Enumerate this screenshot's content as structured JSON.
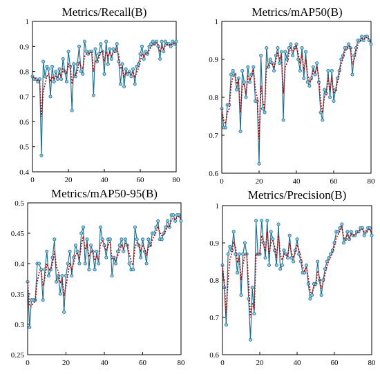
{
  "colors": {
    "line": "#1f6e8c",
    "marker_fill": "#8ecae6",
    "smooth": "#c00000",
    "axis": "#000000"
  },
  "chart_data": [
    {
      "type": "line",
      "title": "Metrics/Recall(B)",
      "xlabel": "",
      "ylabel": "",
      "xlim": [
        0,
        80
      ],
      "ylim": [
        0.4,
        1.0
      ],
      "xticks": [
        "0",
        "20",
        "40",
        "60",
        "80"
      ],
      "yticks": [
        "0.4",
        "0.5",
        "0.6",
        "0.7",
        "0.8",
        "0.9",
        "1"
      ],
      "grid": false,
      "series": [
        {
          "style": "line-markers",
          "values": [
            0.78,
            0.77,
            0.77,
            0.76,
            0.77,
            0.465,
            0.84,
            0.78,
            0.82,
            0.81,
            0.7,
            0.82,
            0.76,
            0.8,
            0.77,
            0.81,
            0.77,
            0.85,
            0.8,
            0.76,
            0.88,
            0.82,
            0.645,
            0.83,
            0.78,
            0.83,
            0.9,
            0.8,
            0.79,
            0.92,
            0.88,
            0.87,
            0.88,
            0.88,
            0.705,
            0.89,
            0.84,
            0.87,
            0.91,
            0.88,
            0.79,
            0.92,
            0.83,
            0.89,
            0.85,
            0.89,
            0.88,
            0.91,
            0.84,
            0.75,
            0.83,
            0.74,
            0.81,
            0.79,
            0.8,
            0.78,
            0.81,
            0.75,
            0.82,
            0.83,
            0.87,
            0.9,
            0.85,
            0.88,
            0.87,
            0.9,
            0.91,
            0.92,
            0.91,
            0.92,
            0.9,
            0.85,
            0.92,
            0.88,
            0.92,
            0.91,
            0.91,
            0.9,
            0.92,
            0.91,
            0.92
          ]
        },
        {
          "style": "dotted-smooth",
          "values": [
            0.78,
            0.775,
            0.77,
            0.765,
            0.765,
            0.62,
            0.72,
            0.75,
            0.78,
            0.79,
            0.76,
            0.78,
            0.77,
            0.78,
            0.775,
            0.79,
            0.78,
            0.81,
            0.8,
            0.79,
            0.83,
            0.825,
            0.75,
            0.79,
            0.785,
            0.8,
            0.84,
            0.82,
            0.81,
            0.86,
            0.87,
            0.87,
            0.875,
            0.877,
            0.8,
            0.84,
            0.84,
            0.855,
            0.88,
            0.88,
            0.84,
            0.88,
            0.86,
            0.875,
            0.862,
            0.875,
            0.878,
            0.893,
            0.868,
            0.81,
            0.82,
            0.78,
            0.795,
            0.793,
            0.796,
            0.788,
            0.8,
            0.775,
            0.797,
            0.813,
            0.84,
            0.87,
            0.86,
            0.87,
            0.87,
            0.885,
            0.897,
            0.908,
            0.909,
            0.914,
            0.907,
            0.878,
            0.899,
            0.889,
            0.905,
            0.907,
            0.908,
            0.904,
            0.912,
            0.911,
            0.915
          ]
        }
      ]
    },
    {
      "type": "line",
      "title": "Metrics/mAP50(B)",
      "xlabel": "",
      "ylabel": "",
      "xlim": [
        0,
        80
      ],
      "ylim": [
        0.6,
        1.0
      ],
      "xticks": [
        "0",
        "20",
        "40",
        "60",
        "80"
      ],
      "yticks": [
        "0.6",
        "0.7",
        "0.8",
        "0.9",
        "1"
      ],
      "grid": false,
      "series": [
        {
          "style": "line-markers",
          "values": [
            0.77,
            0.72,
            0.72,
            0.78,
            0.78,
            0.86,
            0.87,
            0.86,
            0.82,
            0.85,
            0.71,
            0.87,
            0.84,
            0.8,
            0.88,
            0.84,
            0.86,
            0.88,
            0.79,
            0.79,
            0.625,
            0.91,
            0.77,
            0.76,
            0.93,
            0.88,
            0.9,
            0.89,
            0.87,
            0.91,
            0.93,
            0.89,
            0.92,
            0.74,
            0.92,
            0.9,
            0.93,
            0.94,
            0.91,
            0.93,
            0.94,
            0.9,
            0.87,
            0.93,
            0.85,
            0.92,
            0.84,
            0.83,
            0.85,
            0.88,
            0.86,
            0.89,
            0.84,
            0.76,
            0.74,
            0.82,
            0.81,
            0.87,
            0.8,
            0.87,
            0.79,
            0.82,
            0.85,
            0.87,
            0.9,
            0.91,
            0.93,
            0.93,
            0.94,
            0.93,
            0.86,
            0.91,
            0.93,
            0.95,
            0.95,
            0.96,
            0.95,
            0.96,
            0.96,
            0.95,
            0.94
          ]
        },
        {
          "style": "dotted-smooth",
          "values": [
            0.77,
            0.74,
            0.73,
            0.76,
            0.77,
            0.83,
            0.855,
            0.86,
            0.835,
            0.845,
            0.76,
            0.83,
            0.835,
            0.81,
            0.855,
            0.845,
            0.855,
            0.873,
            0.82,
            0.8,
            0.69,
            0.83,
            0.79,
            0.77,
            0.88,
            0.88,
            0.89,
            0.89,
            0.877,
            0.897,
            0.92,
            0.9,
            0.912,
            0.81,
            0.88,
            0.89,
            0.915,
            0.93,
            0.92,
            0.927,
            0.935,
            0.913,
            0.888,
            0.913,
            0.87,
            0.9,
            0.86,
            0.84,
            0.847,
            0.87,
            0.863,
            0.88,
            0.853,
            0.79,
            0.76,
            0.8,
            0.807,
            0.85,
            0.817,
            0.853,
            0.81,
            0.817,
            0.84,
            0.86,
            0.887,
            0.903,
            0.92,
            0.927,
            0.935,
            0.932,
            0.887,
            0.9,
            0.92,
            0.94,
            0.947,
            0.955,
            0.952,
            0.957,
            0.958,
            0.953,
            0.945
          ]
        }
      ]
    },
    {
      "type": "line",
      "title": "Metrics/mAP50-95(B)",
      "xlabel": "",
      "ylabel": "",
      "xlim": [
        0,
        80
      ],
      "ylim": [
        0.25,
        0.5
      ],
      "xticks": [
        "0",
        "20",
        "40",
        "60",
        "80"
      ],
      "yticks": [
        "0.25",
        "0.3",
        "0.35",
        "0.4",
        "0.45",
        "0.5"
      ],
      "grid": false,
      "series": [
        {
          "style": "line-markers",
          "values": [
            0.37,
            0.295,
            0.34,
            0.34,
            0.34,
            0.4,
            0.4,
            0.39,
            0.34,
            0.39,
            0.42,
            0.38,
            0.39,
            0.41,
            0.44,
            0.37,
            0.38,
            0.35,
            0.38,
            0.32,
            0.38,
            0.4,
            0.42,
            0.38,
            0.41,
            0.43,
            0.42,
            0.4,
            0.45,
            0.46,
            0.4,
            0.44,
            0.39,
            0.43,
            0.42,
            0.39,
            0.42,
            0.4,
            0.46,
            0.44,
            0.43,
            0.41,
            0.44,
            0.44,
            0.38,
            0.41,
            0.4,
            0.42,
            0.43,
            0.44,
            0.42,
            0.44,
            0.43,
            0.4,
            0.39,
            0.39,
            0.46,
            0.44,
            0.43,
            0.41,
            0.44,
            0.42,
            0.4,
            0.44,
            0.43,
            0.45,
            0.45,
            0.46,
            0.47,
            0.44,
            0.44,
            0.45,
            0.46,
            0.47,
            0.46,
            0.48,
            0.48,
            0.47,
            0.48,
            0.48,
            0.47
          ]
        },
        {
          "style": "dotted-smooth",
          "values": [
            0.37,
            0.33,
            0.33,
            0.335,
            0.338,
            0.37,
            0.385,
            0.388,
            0.364,
            0.377,
            0.4,
            0.39,
            0.39,
            0.4,
            0.42,
            0.395,
            0.387,
            0.368,
            0.374,
            0.347,
            0.363,
            0.382,
            0.401,
            0.39,
            0.4,
            0.415,
            0.417,
            0.408,
            0.43,
            0.445,
            0.423,
            0.432,
            0.411,
            0.42,
            0.42,
            0.405,
            0.412,
            0.406,
            0.433,
            0.437,
            0.433,
            0.421,
            0.43,
            0.435,
            0.408,
            0.409,
            0.405,
            0.413,
            0.421,
            0.43,
            0.425,
            0.433,
            0.431,
            0.416,
            0.403,
            0.397,
            0.428,
            0.434,
            0.432,
            0.421,
            0.431,
            0.425,
            0.413,
            0.427,
            0.429,
            0.44,
            0.445,
            0.452,
            0.461,
            0.451,
            0.446,
            0.448,
            0.454,
            0.462,
            0.461,
            0.471,
            0.475,
            0.472,
            0.476,
            0.478,
            0.474
          ]
        }
      ]
    },
    {
      "type": "line",
      "title": "Metrics/Precision(B)",
      "xlabel": "",
      "ylabel": "",
      "xlim": [
        0,
        80
      ],
      "ylim": [
        0.6,
        1.0
      ],
      "xticks": [
        "0",
        "20",
        "40",
        "60",
        "80"
      ],
      "yticks": [
        "0.6",
        "0.7",
        "0.8",
        "0.9",
        "1"
      ],
      "grid": false,
      "series": [
        {
          "style": "line-markers",
          "values": [
            0.84,
            0.78,
            0.68,
            0.87,
            0.89,
            0.88,
            0.93,
            0.87,
            0.82,
            0.87,
            0.76,
            0.87,
            0.9,
            0.87,
            0.75,
            0.64,
            0.78,
            0.71,
            0.96,
            0.87,
            0.87,
            0.96,
            0.9,
            0.86,
            0.96,
            0.84,
            0.93,
            0.91,
            0.88,
            0.84,
            0.95,
            0.83,
            0.84,
            0.88,
            0.87,
            0.86,
            0.92,
            0.86,
            0.85,
            0.88,
            0.91,
            0.87,
            0.85,
            0.82,
            0.82,
            0.84,
            0.79,
            0.75,
            0.76,
            0.79,
            0.79,
            0.85,
            0.8,
            0.76,
            0.8,
            0.83,
            0.85,
            0.86,
            0.87,
            0.88,
            0.9,
            0.93,
            0.93,
            0.94,
            0.95,
            0.9,
            0.91,
            0.93,
            0.91,
            0.93,
            0.92,
            0.92,
            0.93,
            0.93,
            0.94,
            0.94,
            0.92,
            0.93,
            0.94,
            0.94,
            0.92
          ]
        },
        {
          "style": "dotted-smooth",
          "values": [
            0.84,
            0.79,
            0.71,
            0.8,
            0.855,
            0.873,
            0.9,
            0.89,
            0.85,
            0.86,
            0.8,
            0.84,
            0.87,
            0.87,
            0.79,
            0.7,
            0.74,
            0.72,
            0.87,
            0.87,
            0.87,
            0.92,
            0.9,
            0.877,
            0.93,
            0.87,
            0.9,
            0.905,
            0.89,
            0.86,
            0.92,
            0.87,
            0.853,
            0.87,
            0.87,
            0.863,
            0.9,
            0.873,
            0.86,
            0.873,
            0.895,
            0.88,
            0.863,
            0.835,
            0.825,
            0.835,
            0.805,
            0.77,
            0.763,
            0.783,
            0.787,
            0.825,
            0.807,
            0.777,
            0.793,
            0.817,
            0.837,
            0.853,
            0.863,
            0.873,
            0.89,
            0.913,
            0.923,
            0.933,
            0.943,
            0.913,
            0.91,
            0.923,
            0.913,
            0.924,
            0.92,
            0.92,
            0.927,
            0.93,
            0.936,
            0.937,
            0.926,
            0.928,
            0.935,
            0.937,
            0.925
          ]
        }
      ]
    }
  ]
}
